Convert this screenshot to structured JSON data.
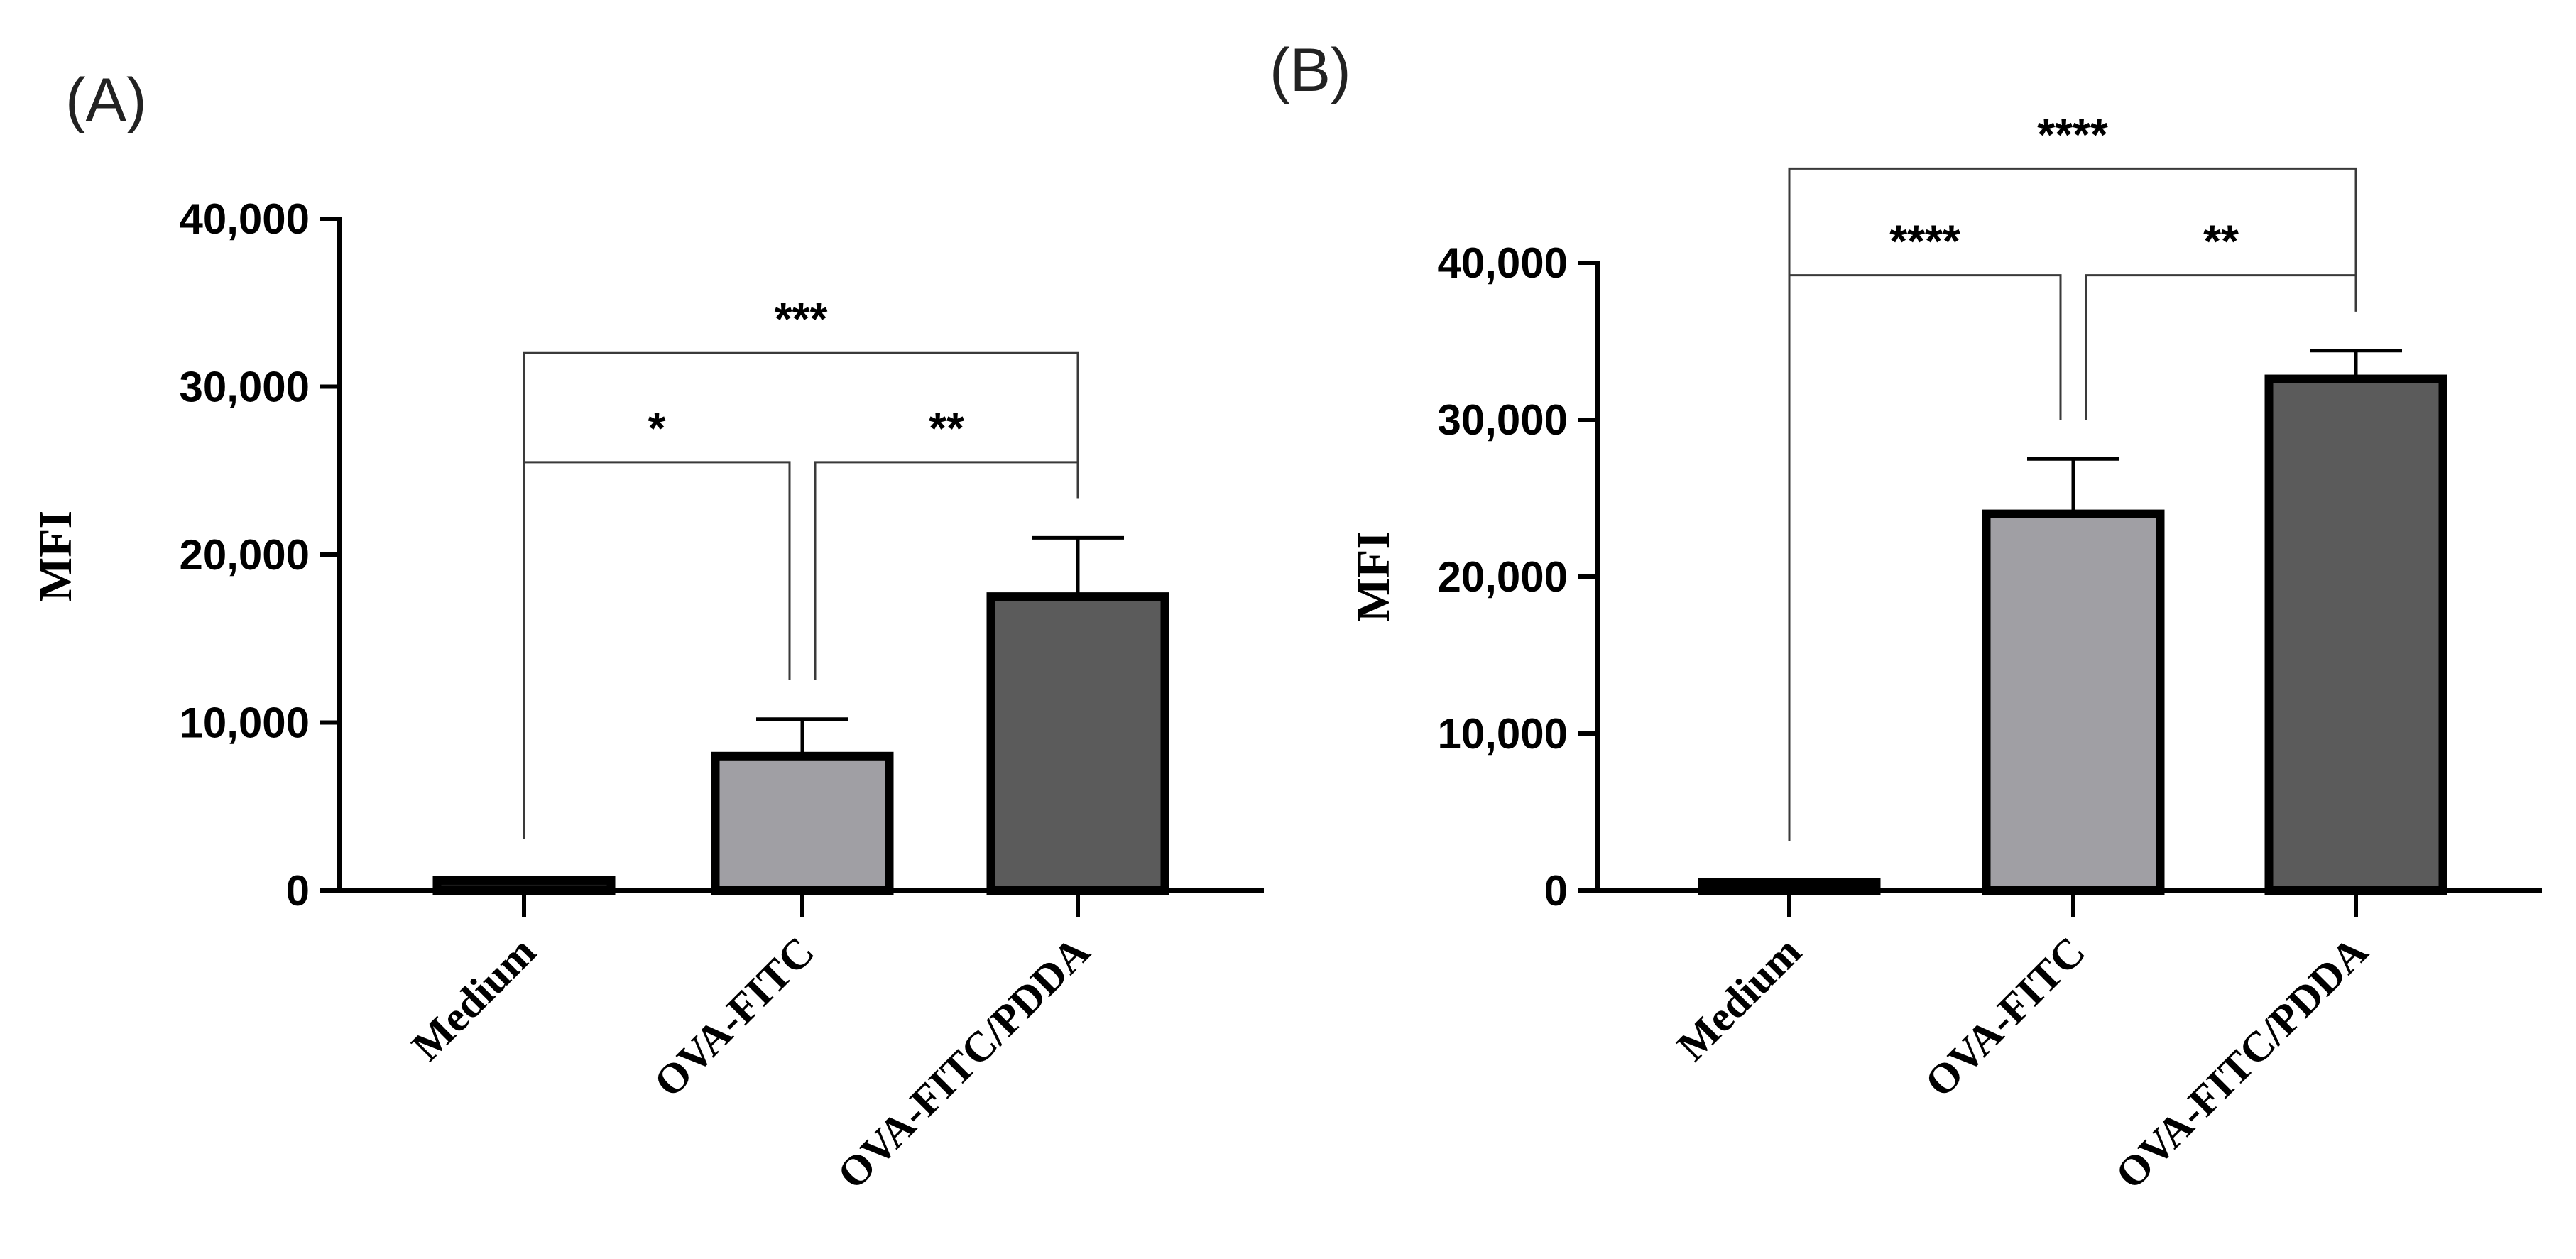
{
  "chart_data": [
    {
      "type": "bar",
      "panel_label": "(A)",
      "categories": [
        "Medium",
        "OVA-FITC",
        "OVA-FITC/PDDA"
      ],
      "values": [
        600,
        8000,
        17500
      ],
      "error_upper": [
        750,
        10200,
        21000
      ],
      "bar_colors": [
        "#1a1a1a",
        "#a09fa4",
        "#5b5b5b"
      ],
      "ylabel": "MFI",
      "ylim": [
        0,
        40000
      ],
      "yticks": [
        0,
        10000,
        20000,
        30000,
        40000
      ],
      "ytick_labels": [
        "0",
        "10,000",
        "20,000",
        "30,000",
        "40,000"
      ],
      "grid": false,
      "significance": [
        {
          "from": 0,
          "to": 1,
          "label": "*",
          "level": 25500
        },
        {
          "from": 1,
          "to": 2,
          "label": "**",
          "level": 25500
        },
        {
          "from": 0,
          "to": 2,
          "label": "***",
          "level": 32000
        }
      ]
    },
    {
      "type": "bar",
      "panel_label": "(B)",
      "categories": [
        "Medium",
        "OVA-FITC",
        "OVA-FITC/PDDA"
      ],
      "values": [
        500,
        24000,
        32600
      ],
      "error_upper": [
        650,
        27500,
        34400
      ],
      "bar_colors": [
        "#1a1a1a",
        "#a09fa4",
        "#5b5b5b"
      ],
      "ylabel": "MFI",
      "ylim": [
        0,
        40000
      ],
      "yticks": [
        0,
        10000,
        20000,
        30000,
        40000
      ],
      "ytick_labels": [
        "0",
        "10,000",
        "20,000",
        "30,000",
        "40,000"
      ],
      "grid": false,
      "significance": [
        {
          "from": 0,
          "to": 1,
          "label": "****",
          "level": 39200
        },
        {
          "from": 1,
          "to": 2,
          "label": "**",
          "level": 39200
        },
        {
          "from": 0,
          "to": 2,
          "label": "****",
          "level": 46000
        }
      ]
    }
  ]
}
